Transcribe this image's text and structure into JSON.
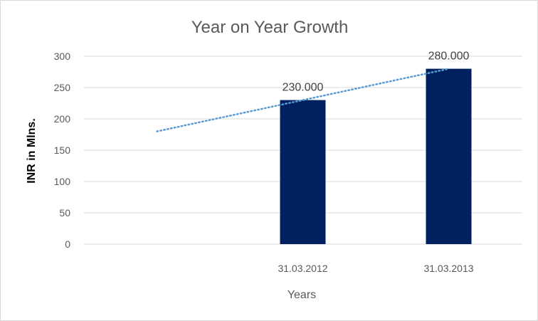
{
  "chart_data": {
    "type": "bar",
    "title": "Year on Year Growth",
    "xlabel": "Years",
    "ylabel": "INR in Mlns.",
    "categories": [
      "",
      "31.03.2012",
      "31.03.2013"
    ],
    "values": [
      null,
      230,
      280
    ],
    "data_labels": [
      "",
      "230.000",
      "280.000"
    ],
    "ylim": [
      0,
      300
    ],
    "yticks": [
      0,
      50,
      100,
      150,
      200,
      250,
      300
    ],
    "grid": true,
    "legend": "none",
    "bar_color": "#002060",
    "trendline": {
      "type": "linear",
      "style": "dotted",
      "color": "#5b9bd5",
      "start_value": 180,
      "end_value": 280
    }
  }
}
